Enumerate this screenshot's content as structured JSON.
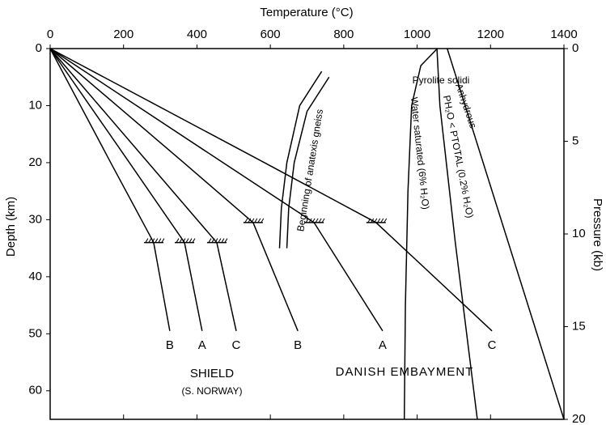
{
  "chart_data": {
    "type": "line",
    "title": "Temperature (°C)",
    "ylabel": "Depth (km)",
    "y2label": "Pressure (kb)",
    "xlim": [
      0,
      1400
    ],
    "xticks": [
      0,
      200,
      400,
      600,
      800,
      1000,
      1200,
      1400
    ],
    "ylim": [
      0,
      65
    ],
    "yticks": [
      0,
      10,
      20,
      30,
      40,
      50,
      60
    ],
    "yreversed": true,
    "y2lim": [
      0,
      20
    ],
    "y2ticks": [
      0,
      5,
      10,
      15,
      20
    ],
    "color": "#000000",
    "series": [
      {
        "name": "B",
        "x": [
          0,
          165,
          282,
          326
        ],
        "values": [
          0,
          20,
          34,
          49.5
        ]
      },
      {
        "name": "A",
        "x": [
          0,
          216,
          366,
          414
        ],
        "values": [
          0,
          20,
          34,
          49.5
        ]
      },
      {
        "name": "C",
        "x": [
          0,
          267,
          454,
          507
        ],
        "values": [
          0,
          20,
          34,
          49.5
        ]
      },
      {
        "name": "B",
        "x": [
          0,
          364,
          553,
          675
        ],
        "values": [
          0,
          20,
          30.5,
          49.5
        ]
      },
      {
        "name": "A",
        "x": [
          0,
          471,
          719,
          906
        ],
        "values": [
          0,
          20,
          30.5,
          49.5
        ]
      },
      {
        "name": "C",
        "x": [
          0,
          584,
          888,
          1204
        ],
        "values": [
          0,
          20,
          30.5,
          49.5
        ]
      },
      {
        "x": [
          740,
          680,
          645,
          630,
          625
        ],
        "values": [
          4,
          10,
          20,
          28,
          35
        ]
      },
      {
        "x": [
          760,
          700,
          665,
          650,
          645
        ],
        "values": [
          5,
          11,
          20,
          28,
          35
        ]
      },
      {
        "name": "Water saturated (6% H₂O)",
        "x": [
          1055,
          1010,
          985,
          975,
          968,
          965
        ],
        "values": [
          0,
          3,
          10,
          25,
          45,
          65
        ]
      },
      {
        "name": "PH₂O < PTOTAL (0.2% H₂O)",
        "x": [
          1054,
          1062,
          1104,
          1164
        ],
        "values": [
          0,
          10,
          34,
          65
        ]
      },
      {
        "name": "Anhydrous",
        "x": [
          1082,
          1400
        ],
        "values": [
          0,
          65
        ]
      }
    ],
    "annotations": [
      "Beginning of anatexis gneiss",
      "Pyrolite solidi",
      "SHIELD",
      "(S. NORWAY)",
      "DANISH EMBAYMENT"
    ]
  }
}
